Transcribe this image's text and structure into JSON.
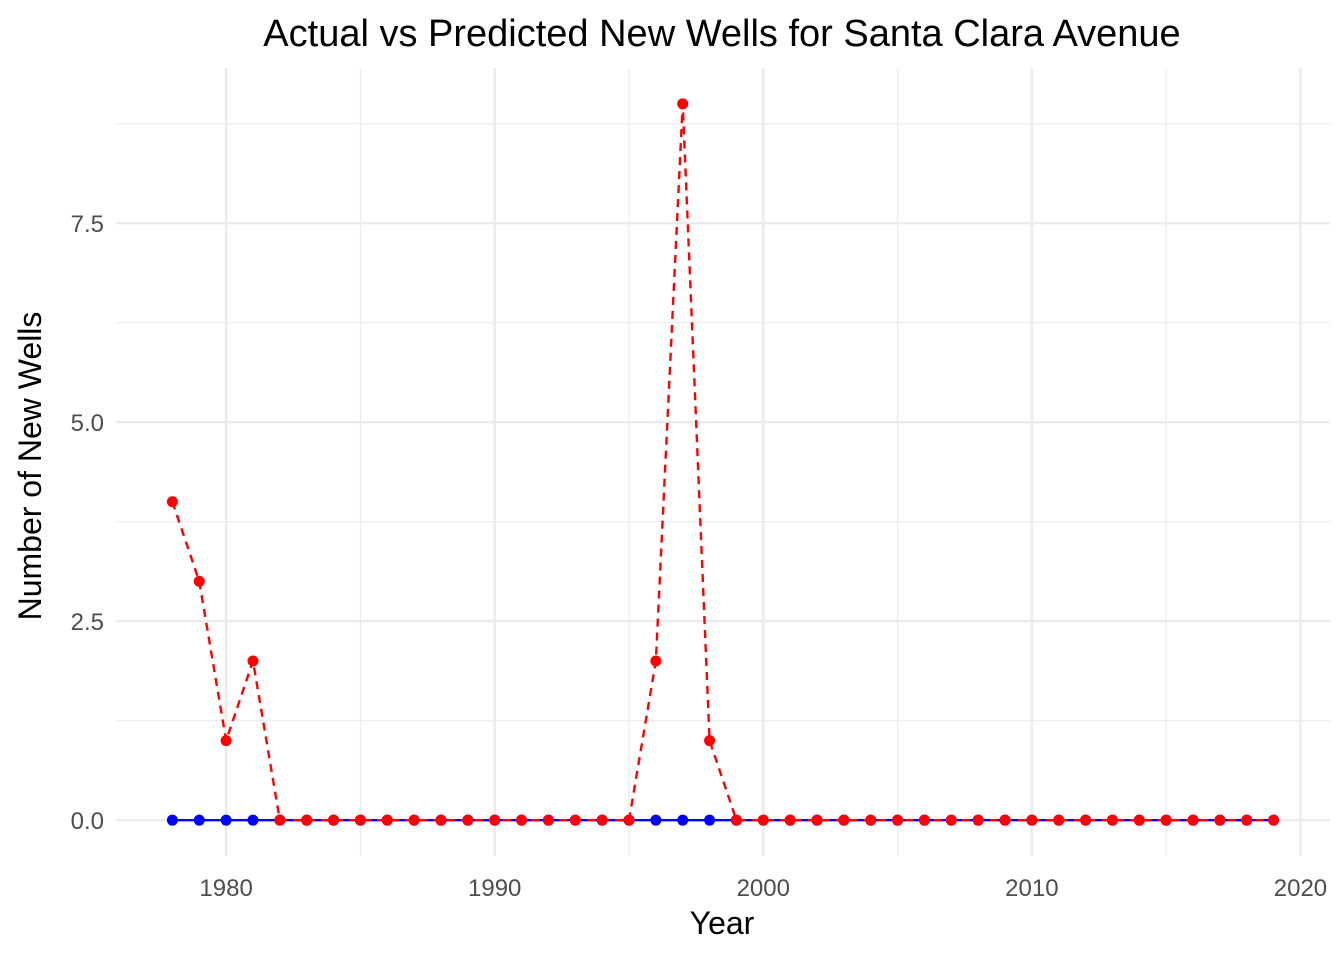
{
  "chart_data": {
    "type": "line",
    "title": "Actual vs Predicted New Wells for Santa Clara Avenue",
    "xlabel": "Year",
    "ylabel": "Number of New Wells",
    "xlim": [
      1975.9,
      2021.1
    ],
    "ylim": [
      -0.45,
      9.45
    ],
    "x_ticks": [
      1980,
      1990,
      2000,
      2010,
      2020
    ],
    "x_tick_labels": [
      "1980",
      "1990",
      "2000",
      "2010",
      "2020"
    ],
    "y_ticks": [
      0,
      2.5,
      5,
      7.5
    ],
    "y_tick_labels": [
      "0.0",
      "2.5",
      "5.0",
      "7.5"
    ],
    "grid": true,
    "legend": "none",
    "x": [
      1978,
      1979,
      1980,
      1981,
      1982,
      1983,
      1984,
      1985,
      1986,
      1987,
      1988,
      1989,
      1990,
      1991,
      1992,
      1993,
      1994,
      1995,
      1996,
      1997,
      1998,
      1999,
      2000,
      2001,
      2002,
      2003,
      2004,
      2005,
      2006,
      2007,
      2008,
      2009,
      2010,
      2011,
      2012,
      2013,
      2014,
      2015,
      2016,
      2017,
      2018,
      2019
    ],
    "series": [
      {
        "color": "#0000ff",
        "line_style": "solid",
        "values": [
          0,
          0,
          0,
          0,
          0,
          0,
          0,
          0,
          0,
          0,
          0,
          0,
          0,
          0,
          0,
          0,
          0,
          0,
          0,
          0,
          0,
          0,
          0,
          0,
          0,
          0,
          0,
          0,
          0,
          0,
          0,
          0,
          0,
          0,
          0,
          0,
          0,
          0,
          0,
          0,
          0,
          0
        ]
      },
      {
        "color": "#ff0000",
        "line_style": "dashed",
        "values": [
          4,
          3,
          1,
          2,
          0,
          0,
          0,
          0,
          0,
          0,
          0,
          0,
          0,
          0,
          0,
          0,
          0,
          0,
          2,
          9,
          1,
          0,
          0,
          0,
          0,
          0,
          0,
          0,
          0,
          0,
          0,
          0,
          0,
          0,
          0,
          0,
          0,
          0,
          0,
          0,
          0,
          0
        ]
      }
    ]
  }
}
